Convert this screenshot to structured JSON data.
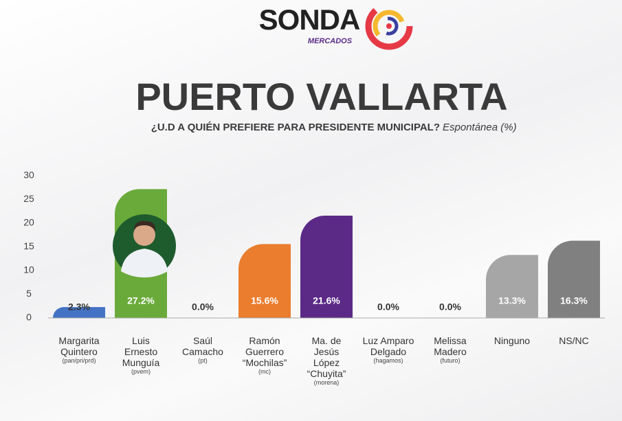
{
  "chart_data": {
    "type": "bar",
    "brand": "SONDA",
    "brand_sub": "MERCADOS",
    "title": "PUERTO VALLARTA",
    "subtitle": "¿U.D A QUIÉN PREFIERE PARA PRESIDENTE MUNICIPAL?",
    "subtitle_note": "Espontánea (%)",
    "categories": [
      "Margarita\nQuintero",
      "Luis\nErnesto\nMunguía",
      "Saúl\nCamacho",
      "Ramón\nGuerrero\n“Mochilas”",
      "Ma. de\nJesús\nLópez\n“Chuyita”",
      "Luz Amparo\nDelgado",
      "Melissa\nMadero",
      "Ninguno",
      "NS/NC"
    ],
    "parties": [
      "(pan/pri/prd)",
      "(pvem)",
      "(pt)",
      "(mc)",
      "(morena)",
      "(hagamos)",
      "(futuro)",
      null,
      null
    ],
    "values": [
      2.3,
      27.2,
      0.0,
      15.6,
      21.6,
      0.0,
      0.0,
      13.3,
      16.3
    ],
    "value_labels": [
      "2.3%",
      "27.2%",
      "0.0%",
      "15.6%",
      "21.6%",
      "0.0%",
      "0.0%",
      "13.3%",
      "16.3%"
    ],
    "colors": [
      "#4472c4",
      "#6aaa3a",
      "#9e9e9e",
      "#ea7d2e",
      "#5b2a86",
      "#9e9e9e",
      "#9e9e9e",
      "#a6a6a6",
      "#808080"
    ],
    "ylim": [
      0,
      30
    ],
    "yticks": [
      0,
      5,
      10,
      15,
      20,
      25,
      30
    ],
    "grid": false
  }
}
